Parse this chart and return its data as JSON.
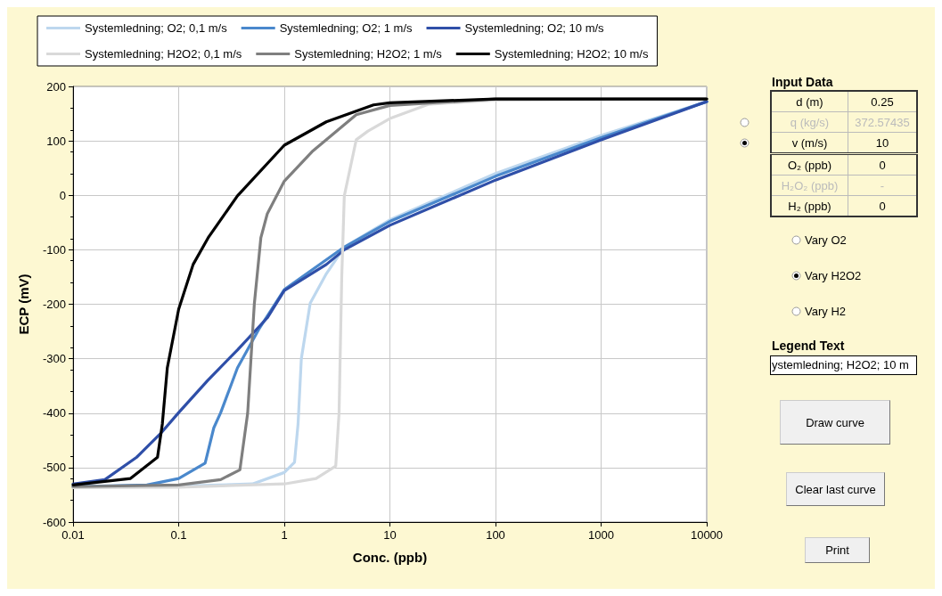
{
  "chart_data": [
    {
      "type": "line",
      "xlabel": "Conc. (ppb)",
      "ylabel": "ECP (mV)",
      "log": "x",
      "xlim": [
        0.01,
        10000
      ],
      "ylim": [
        -600,
        200
      ],
      "xticks": [
        0.01,
        0.1,
        1,
        10,
        100,
        1000,
        10000
      ],
      "yticks": [
        -600,
        -500,
        -400,
        -300,
        -200,
        -100,
        0,
        100,
        200
      ],
      "grid": true,
      "legend": "top",
      "marker": "none",
      "line_style": "solid",
      "series": [
        {
          "name": "Systemledning; O2; 0,1 m/s",
          "color": "#bdd7ee",
          "x": [
            0.01,
            0.1,
            0.5,
            1,
            1.25,
            1.35,
            1.45,
            1.76,
            2.5,
            3.7,
            10,
            100,
            1000,
            10000
          ],
          "values": [
            -535,
            -534,
            -530,
            -509,
            -490,
            -420,
            -300,
            -198,
            -144,
            -95,
            -45,
            40,
            110,
            172
          ]
        },
        {
          "name": "Systemledning; O2; 1 m/s",
          "color": "#4a88cc",
          "x": [
            0.01,
            0.05,
            0.1,
            0.178,
            0.215,
            0.25,
            0.36,
            0.57,
            1,
            3.7,
            10,
            100,
            1000,
            10000
          ],
          "values": [
            -535,
            -532,
            -520,
            -492,
            -427,
            -399,
            -317,
            -247,
            -173,
            -95,
            -48,
            35,
            106,
            172
          ]
        },
        {
          "name": "Systemledning; O2; 10 m/s",
          "color": "#2f4fa8",
          "x": [
            0.01,
            0.02,
            0.04,
            0.067,
            0.1,
            0.188,
            0.36,
            0.69,
            1,
            2.5,
            3.7,
            10,
            100,
            1000,
            10000
          ],
          "values": [
            -530,
            -522,
            -481,
            -438,
            -399,
            -340,
            -284,
            -225,
            -175,
            -127,
            -100,
            -55,
            28,
            102,
            172
          ]
        },
        {
          "name": "Systemledning; H2O2; 0,1 m/s",
          "color": "#d9d9d9",
          "x": [
            0.01,
            0.1,
            1,
            2,
            3.07,
            3.3,
            3.5,
            3.7,
            4.8,
            6.2,
            10,
            23,
            100,
            10000
          ],
          "values": [
            -537,
            -536,
            -530,
            -520,
            -497,
            -400,
            -150,
            -1,
            102,
            118,
            141,
            167,
            175,
            177
          ]
        },
        {
          "name": "Systemledning; H2O2; 1 m/s",
          "color": "#7f7f7f",
          "x": [
            0.01,
            0.1,
            0.25,
            0.38,
            0.45,
            0.52,
            0.6,
            0.69,
            1,
            1.83,
            4.8,
            10,
            100,
            10000
          ],
          "values": [
            -535,
            -532,
            -522,
            -504,
            -400,
            -200,
            -78,
            -34,
            26,
            80,
            148,
            165,
            177,
            177
          ]
        },
        {
          "name": "Systemledning; H2O2; 10 m/s",
          "color": "#000000",
          "x": [
            0.01,
            0.035,
            0.063,
            0.07,
            0.078,
            0.1,
            0.137,
            0.19,
            0.36,
            1,
            2.5,
            7,
            10,
            100,
            10000
          ],
          "values": [
            -532,
            -520,
            -481,
            -420,
            -317,
            -209,
            -127,
            -78,
            -1,
            92,
            135,
            166,
            170,
            177,
            177
          ]
        }
      ]
    },
    {
      "type": "other",
      "title": "Input Data",
      "annotations": [
        "d (m)",
        "0.25",
        "q (kg/s)",
        "372.57435",
        "v (m/s)",
        "10",
        "O₂ (ppb)",
        "0",
        "H₂O₂ (ppb)",
        "-",
        "H₂ (ppb)",
        "0",
        "Vary O2",
        "Vary H2O2",
        "Vary H2",
        "Legend Text",
        "ystemledning; H2O2; 10 m",
        "Draw curve",
        "Clear last curve",
        "Print"
      ]
    }
  ]
}
